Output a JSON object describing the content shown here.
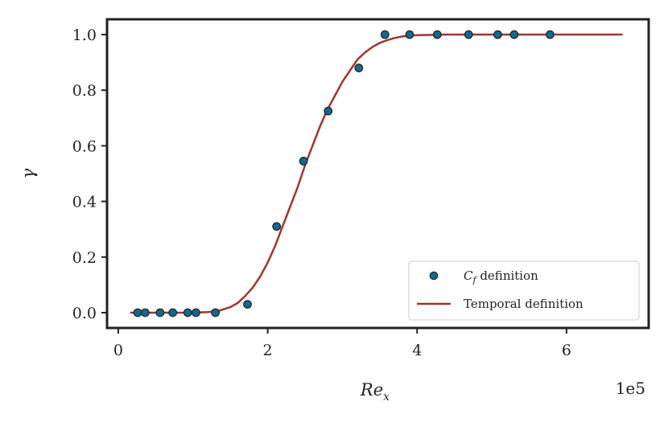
{
  "chart_data": {
    "type": "scatter",
    "title": "",
    "xlabel": "Re",
    "xlabel_sub": "x",
    "ylabel": "γ",
    "x_offset_text": "1e5",
    "xlim": [
      -0.15,
      7.1
    ],
    "ylim": [
      -0.055,
      1.055
    ],
    "x_ticks": [
      0,
      2,
      4,
      6
    ],
    "x_tick_labels": [
      "0",
      "2",
      "4",
      "6"
    ],
    "y_ticks": [
      0.0,
      0.2,
      0.4,
      0.6,
      0.8,
      1.0
    ],
    "y_tick_labels": [
      "0.0",
      "0.2",
      "0.4",
      "0.6",
      "0.8",
      "1.0"
    ],
    "grid": false,
    "legend_position": "lower-right",
    "series": [
      {
        "name": "C",
        "name_sub": "f",
        "name_suffix": " definition",
        "kind": "scatter",
        "color": "#0e6a8e",
        "edge_color": "#222222",
        "x": [
          0.26,
          0.36,
          0.56,
          0.73,
          0.93,
          1.04,
          1.3,
          1.73,
          2.12,
          2.48,
          2.81,
          3.22,
          3.57,
          3.9,
          4.27,
          4.69,
          5.08,
          5.3,
          5.78
        ],
        "y": [
          0.0,
          0.0,
          0.0,
          0.0,
          0.0,
          0.0,
          0.0,
          0.03,
          0.31,
          0.545,
          0.725,
          0.88,
          1.0,
          1.0,
          1.0,
          1.0,
          1.0,
          1.0,
          1.0
        ]
      },
      {
        "name": "Temporal definition",
        "kind": "line",
        "color": "#a3352b",
        "x": [
          0.16,
          0.4,
          0.8,
          1.0,
          1.2,
          1.35,
          1.5,
          1.6,
          1.7,
          1.8,
          1.9,
          2.0,
          2.1,
          2.2,
          2.3,
          2.4,
          2.5,
          2.6,
          2.7,
          2.8,
          2.9,
          3.0,
          3.1,
          3.2,
          3.3,
          3.4,
          3.5,
          3.6,
          3.7,
          3.8,
          3.9,
          4.0,
          4.2,
          4.4,
          4.8,
          5.2,
          5.6,
          6.0,
          6.4,
          6.75
        ],
        "y": [
          0.0,
          0.0,
          0.0,
          0.0,
          0.002,
          0.007,
          0.02,
          0.035,
          0.06,
          0.09,
          0.13,
          0.18,
          0.24,
          0.31,
          0.38,
          0.45,
          0.53,
          0.6,
          0.67,
          0.73,
          0.78,
          0.83,
          0.87,
          0.91,
          0.935,
          0.955,
          0.97,
          0.98,
          0.988,
          0.993,
          0.996,
          0.998,
          0.999,
          1.0,
          1.0,
          1.0,
          1.0,
          1.0,
          1.0,
          1.0
        ]
      }
    ]
  }
}
